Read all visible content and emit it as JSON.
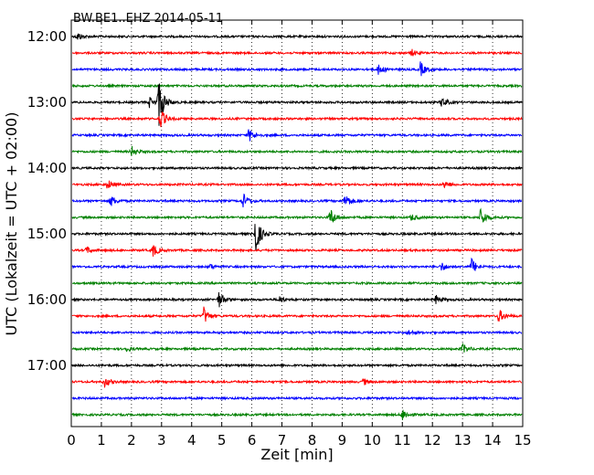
{
  "chart_data": {
    "type": "line",
    "title": "BW.BE1..EHZ 2014-05-11",
    "xlabel": "Zeit  [min]",
    "ylabel": "UTC (Lokalzeit = UTC + 02:00)",
    "xlim": [
      0,
      15
    ],
    "x_ticks": [
      "0",
      "1",
      "2",
      "3",
      "4",
      "5",
      "6",
      "7",
      "8",
      "9",
      "10",
      "11",
      "12",
      "13",
      "14",
      "15"
    ],
    "y_ticks": [
      {
        "time": "12:00",
        "row": 0
      },
      {
        "time": "13:00",
        "row": 4
      },
      {
        "time": "14:00",
        "row": 8
      },
      {
        "time": "15:00",
        "row": 12
      },
      {
        "time": "16:00",
        "row": 16
      },
      {
        "time": "17:00",
        "row": 20
      }
    ],
    "grid": "vertical dotted",
    "trace_colors": [
      "#000000",
      "#ff0000",
      "#0000ff",
      "#008000"
    ],
    "traces": [
      {
        "start": "12:00",
        "color": "#000000",
        "events": [
          {
            "x": 0.2,
            "amp": 5
          }
        ]
      },
      {
        "start": "12:15",
        "color": "#ff0000",
        "events": [
          {
            "x": 11.3,
            "amp": 4
          }
        ]
      },
      {
        "start": "12:30",
        "color": "#0000ff",
        "events": [
          {
            "x": 10.2,
            "amp": 6
          },
          {
            "x": 11.6,
            "amp": 8
          }
        ]
      },
      {
        "start": "12:45",
        "color": "#008000",
        "events": []
      },
      {
        "start": "13:00",
        "color": "#000000",
        "events": [
          {
            "x": 2.6,
            "amp": 6
          },
          {
            "x": 2.9,
            "amp": 30
          },
          {
            "x": 12.3,
            "amp": 6
          }
        ]
      },
      {
        "start": "13:15",
        "color": "#ff0000",
        "events": [
          {
            "x": 2.95,
            "amp": 12
          }
        ]
      },
      {
        "start": "13:30",
        "color": "#0000ff",
        "events": [
          {
            "x": 5.9,
            "amp": 8
          }
        ]
      },
      {
        "start": "13:45",
        "color": "#008000",
        "events": [
          {
            "x": 2.0,
            "amp": 6
          }
        ]
      },
      {
        "start": "14:00",
        "color": "#000000",
        "events": []
      },
      {
        "start": "14:15",
        "color": "#ff0000",
        "events": [
          {
            "x": 1.2,
            "amp": 6
          },
          {
            "x": 12.4,
            "amp": 5
          }
        ]
      },
      {
        "start": "14:30",
        "color": "#0000ff",
        "events": [
          {
            "x": 1.3,
            "amp": 7
          },
          {
            "x": 5.7,
            "amp": 9
          },
          {
            "x": 9.1,
            "amp": 9
          }
        ]
      },
      {
        "start": "14:45",
        "color": "#008000",
        "events": [
          {
            "x": 8.6,
            "amp": 11
          },
          {
            "x": 11.3,
            "amp": 4
          },
          {
            "x": 13.6,
            "amp": 12
          }
        ]
      },
      {
        "start": "15:00",
        "color": "#000000",
        "events": [
          {
            "x": 6.1,
            "amp": 26
          }
        ]
      },
      {
        "start": "15:15",
        "color": "#ff0000",
        "events": [
          {
            "x": 0.5,
            "amp": 4
          },
          {
            "x": 2.7,
            "amp": 8
          }
        ]
      },
      {
        "start": "15:30",
        "color": "#0000ff",
        "events": [
          {
            "x": 4.6,
            "amp": 3
          },
          {
            "x": 12.3,
            "amp": 5
          },
          {
            "x": 13.3,
            "amp": 9
          }
        ]
      },
      {
        "start": "15:45",
        "color": "#008000",
        "events": []
      },
      {
        "start": "16:00",
        "color": "#000000",
        "events": [
          {
            "x": 4.9,
            "amp": 9
          },
          {
            "x": 6.9,
            "amp": 4
          },
          {
            "x": 12.1,
            "amp": 5
          }
        ]
      },
      {
        "start": "16:15",
        "color": "#ff0000",
        "events": [
          {
            "x": 4.4,
            "amp": 10
          },
          {
            "x": 14.2,
            "amp": 8
          }
        ]
      },
      {
        "start": "16:30",
        "color": "#0000ff",
        "events": [
          {
            "x": 11.2,
            "amp": 3
          }
        ]
      },
      {
        "start": "16:45",
        "color": "#008000",
        "events": [
          {
            "x": 1.8,
            "amp": 3
          },
          {
            "x": 13.0,
            "amp": 6
          }
        ]
      },
      {
        "start": "17:00",
        "color": "#000000",
        "events": []
      },
      {
        "start": "17:15",
        "color": "#ff0000",
        "events": [
          {
            "x": 1.1,
            "amp": 6
          },
          {
            "x": 9.7,
            "amp": 4
          }
        ]
      },
      {
        "start": "17:30",
        "color": "#0000ff",
        "events": []
      },
      {
        "start": "17:45",
        "color": "#008000",
        "events": [
          {
            "x": 11.0,
            "amp": 7
          }
        ]
      }
    ]
  }
}
